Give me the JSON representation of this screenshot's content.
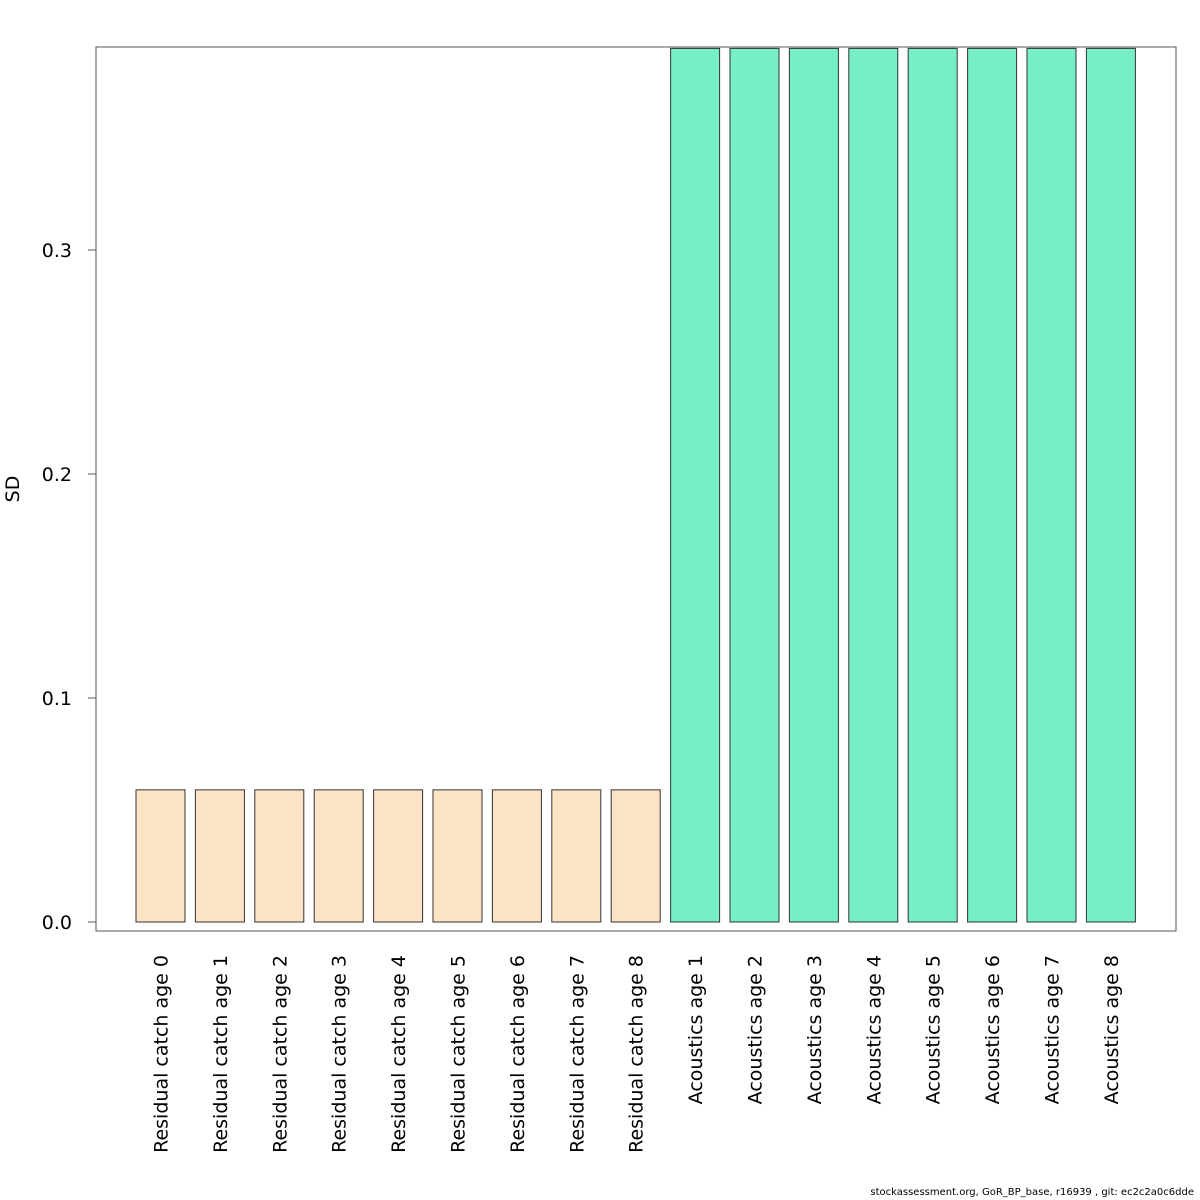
{
  "chart_data": {
    "type": "bar",
    "ylabel": "SD",
    "xlabel": "",
    "ylim": [
      0,
      0.39
    ],
    "yticks": [
      0.0,
      0.1,
      0.2,
      0.3
    ],
    "ytick_labels": [
      "0.0",
      "0.1",
      "0.2",
      "0.3"
    ],
    "grid": false,
    "categories": [
      "Residual catch age 0",
      "Residual catch age 1",
      "Residual catch age 2",
      "Residual catch age 3",
      "Residual catch age 4",
      "Residual catch age 5",
      "Residual catch age 6",
      "Residual catch age 7",
      "Residual catch age 8",
      "Acoustics age 1",
      "Acoustics age 2",
      "Acoustics age 3",
      "Acoustics age 4",
      "Acoustics age 5",
      "Acoustics age 6",
      "Acoustics age 7",
      "Acoustics age 8"
    ],
    "values": [
      0.059,
      0.059,
      0.059,
      0.059,
      0.059,
      0.059,
      0.059,
      0.059,
      0.059,
      0.39,
      0.39,
      0.39,
      0.39,
      0.39,
      0.39,
      0.39,
      0.39
    ],
    "bar_colors": [
      "#FDE3C5",
      "#FDE3C5",
      "#FDE3C5",
      "#FDE3C5",
      "#FDE3C5",
      "#FDE3C5",
      "#FDE3C5",
      "#FDE3C5",
      "#FDE3C5",
      "#76EFC7",
      "#76EFC7",
      "#76EFC7",
      "#76EFC7",
      "#76EFC7",
      "#76EFC7",
      "#76EFC7",
      "#76EFC7"
    ]
  },
  "footer": {
    "text": "stockassessment.org, GoR_BP_base, r16939 , git: ec2c2a0c6dde"
  }
}
